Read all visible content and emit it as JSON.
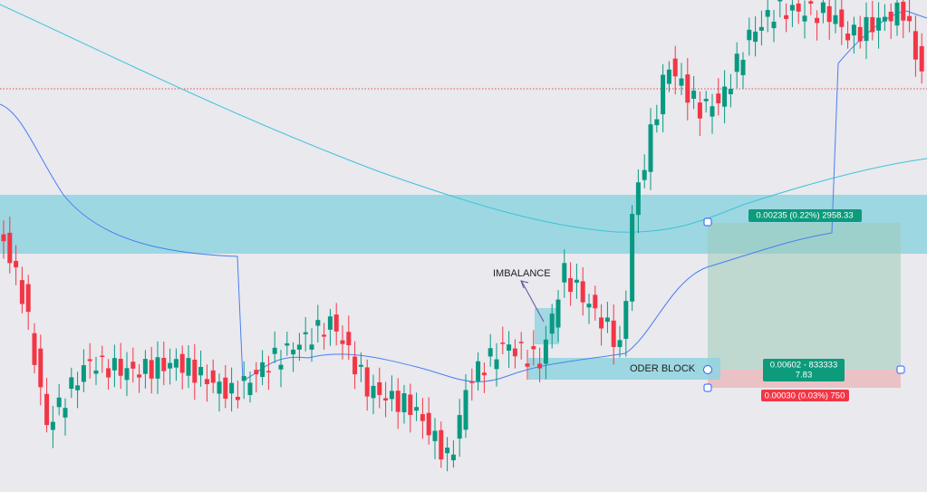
{
  "annotations": {
    "imbalance": "IMBALANCE",
    "order_block": "ODER BLOCK"
  },
  "position": {
    "target": "0.00235 (0.22%) 2958.33",
    "ratio_line1": "0.00602 - 833333",
    "ratio_line2": "7.83",
    "stop": "0.00030 (0.03%) 750"
  }
}
